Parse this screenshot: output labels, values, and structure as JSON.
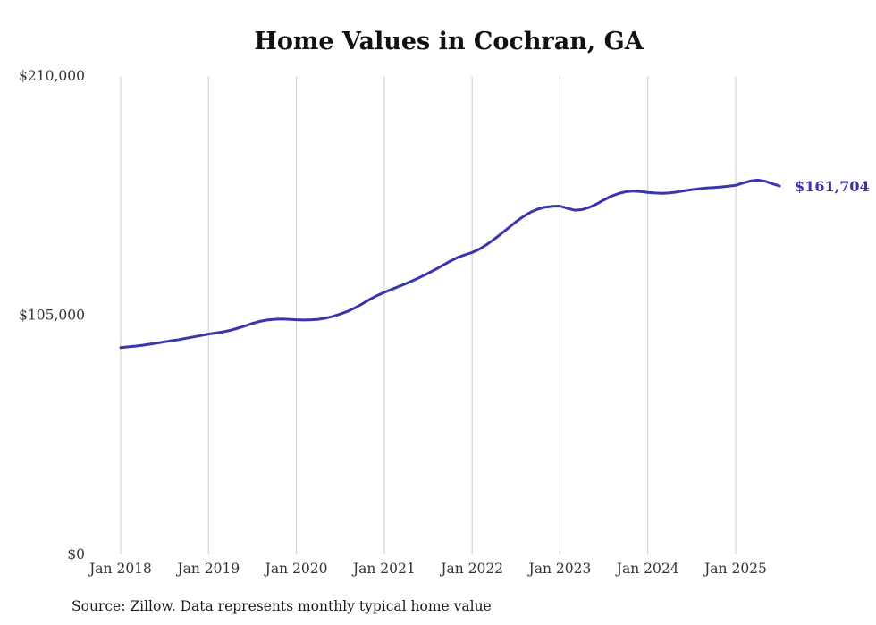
{
  "chart": {
    "title": "Home Values in Cochran, GA",
    "source_note": "Source: Zillow. Data represents monthly typical home value",
    "end_label": "$161,704",
    "accent_color": "#3a35ad",
    "gridline_color": "#cccccc",
    "text_color": "#333333"
  },
  "chart_data": {
    "type": "line",
    "title": "Home Values in Cochran, GA",
    "series_name": "Monthly typical home value",
    "final_value": 161704,
    "ylim": [
      0,
      210000
    ],
    "grid": "vertical-only",
    "legend": "none",
    "y_tick_labels": [
      "$210,000",
      "$105,000",
      "$0"
    ],
    "y_tick_values": [
      210000,
      105000,
      0
    ],
    "x_tick_labels": [
      "Jan 2018",
      "Jan 2019",
      "Jan 2020",
      "Jan 2021",
      "Jan 2022",
      "Jan 2023",
      "Jan 2024",
      "Jan 2025"
    ],
    "x": [
      "2018-01",
      "2018-02",
      "2018-03",
      "2018-04",
      "2018-05",
      "2018-06",
      "2018-07",
      "2018-08",
      "2018-09",
      "2018-10",
      "2018-11",
      "2018-12",
      "2019-01",
      "2019-02",
      "2019-03",
      "2019-04",
      "2019-05",
      "2019-06",
      "2019-07",
      "2019-08",
      "2019-09",
      "2019-10",
      "2019-11",
      "2019-12",
      "2020-01",
      "2020-02",
      "2020-03",
      "2020-04",
      "2020-05",
      "2020-06",
      "2020-07",
      "2020-08",
      "2020-09",
      "2020-10",
      "2020-11",
      "2020-12",
      "2021-01",
      "2021-02",
      "2021-03",
      "2021-04",
      "2021-05",
      "2021-06",
      "2021-07",
      "2021-08",
      "2021-09",
      "2021-10",
      "2021-11",
      "2021-12",
      "2022-01",
      "2022-02",
      "2022-03",
      "2022-04",
      "2022-05",
      "2022-06",
      "2022-07",
      "2022-08",
      "2022-09",
      "2022-10",
      "2022-11",
      "2022-12",
      "2023-01",
      "2023-02",
      "2023-03",
      "2023-04",
      "2023-05",
      "2023-06",
      "2023-07",
      "2023-08",
      "2023-09",
      "2023-10",
      "2023-11",
      "2023-12",
      "2024-01",
      "2024-02",
      "2024-03",
      "2024-04",
      "2024-05",
      "2024-06",
      "2024-07",
      "2024-08",
      "2024-09",
      "2024-10",
      "2024-11",
      "2024-12",
      "2025-01",
      "2025-02",
      "2025-03",
      "2025-04",
      "2025-05",
      "2025-06",
      "2025-07"
    ],
    "values": [
      90800,
      91100,
      91400,
      91800,
      92300,
      92800,
      93300,
      93800,
      94300,
      94900,
      95500,
      96100,
      96700,
      97200,
      97700,
      98400,
      99300,
      100300,
      101400,
      102300,
      102900,
      103200,
      103300,
      103200,
      103000,
      102900,
      103000,
      103200,
      103700,
      104500,
      105500,
      106700,
      108200,
      110000,
      111900,
      113600,
      115000,
      116300,
      117600,
      118900,
      120300,
      121800,
      123400,
      125100,
      126900,
      128700,
      130300,
      131500,
      132500,
      134000,
      136000,
      138300,
      140800,
      143400,
      146000,
      148300,
      150200,
      151600,
      152400,
      152800,
      152900,
      151900,
      151100,
      151300,
      152300,
      153800,
      155600,
      157200,
      158400,
      159200,
      159500,
      159300,
      158900,
      158600,
      158500,
      158700,
      159100,
      159600,
      160100,
      160500,
      160800,
      161000,
      161300,
      161600,
      162000,
      163000,
      163900,
      164300,
      163800,
      162700,
      161704
    ]
  }
}
